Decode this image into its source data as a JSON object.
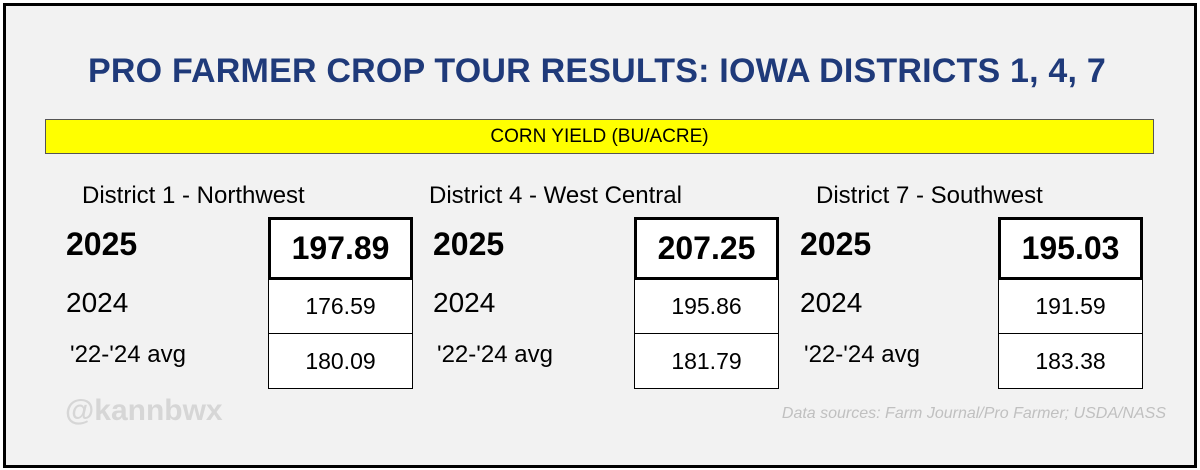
{
  "title": "PRO FARMER CROP TOUR RESULTS: IOWA DISTRICTS 1, 4, 7",
  "banner": "CORN YIELD (BU/ACRE)",
  "colors": {
    "title": "#1f3a7a",
    "banner_bg": "#ffff00",
    "frame_bg": "#f2f2f2"
  },
  "watermark": "@kannbwx",
  "source": "Data sources: Farm Journal/Pro Farmer; USDA/NASS",
  "chart_data": {
    "type": "table",
    "title": "PRO FARMER CROP TOUR RESULTS: IOWA DISTRICTS 1, 4, 7",
    "subtitle": "CORN YIELD (BU/ACRE)",
    "row_labels": [
      "2025",
      "2024",
      "'22-'24 avg"
    ],
    "districts": [
      {
        "name": "District 1 - Northwest",
        "values": [
          "197.89",
          "176.59",
          "180.09"
        ]
      },
      {
        "name": "District 4 - West Central",
        "values": [
          "207.25",
          "195.86",
          "181.79"
        ]
      },
      {
        "name": "District 7 - Southwest",
        "values": [
          "195.03",
          "191.59",
          "183.38"
        ]
      }
    ]
  }
}
